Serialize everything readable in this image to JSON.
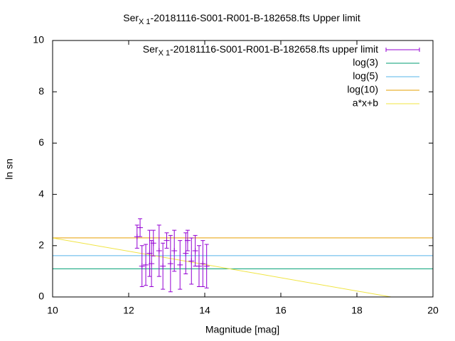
{
  "chart_data": {
    "type": "errorbar",
    "title": {
      "main": "Ser",
      "subscript": "X 1",
      "rest": "-20181116-S001-R001-B-182658.fts Upper limit"
    },
    "x_label": "Magnitude [mag]",
    "y_label": "ln sn",
    "xlim": [
      10,
      20
    ],
    "xticks": [
      10,
      12,
      14,
      16,
      18,
      20
    ],
    "ylim": [
      0,
      10
    ],
    "yticks": [
      0,
      2,
      4,
      6,
      8,
      10
    ],
    "grid": false,
    "legend": "top-right",
    "series": [
      {
        "name": {
          "main": "Ser",
          "subscript": "X 1",
          "rest": "-20181116-S001-R001-B-182658.fts upper limit"
        },
        "style": "errorbars",
        "color": "#9400d3",
        "x": [
          12.22,
          12.3,
          12.35,
          12.45,
          12.55,
          12.6,
          12.65,
          12.8,
          12.9,
          13.0,
          13.1,
          13.2,
          13.35,
          13.5,
          13.55,
          13.65,
          13.75,
          13.85,
          13.95,
          14.05
        ],
        "values": [
          2.35,
          2.7,
          1.2,
          1.25,
          1.7,
          1.3,
          2.1,
          1.8,
          1.2,
          2.2,
          1.3,
          1.8,
          1.25,
          1.7,
          2.2,
          1.4,
          1.8,
          1.2,
          1.3,
          1.2
        ],
        "errors": [
          0.45,
          0.35,
          0.8,
          0.8,
          0.9,
          0.9,
          0.5,
          1.0,
          0.9,
          0.3,
          1.1,
          0.8,
          0.95,
          0.8,
          0.4,
          0.9,
          0.6,
          0.8,
          0.9,
          0.85
        ]
      },
      {
        "name": "log(3)",
        "style": "line",
        "color": "#009e73",
        "x": [
          10,
          20
        ],
        "values": [
          1.099,
          1.099
        ]
      },
      {
        "name": "log(5)",
        "style": "line",
        "color": "#56b4e9",
        "x": [
          10,
          20
        ],
        "values": [
          1.609,
          1.609
        ]
      },
      {
        "name": "log(10)",
        "style": "line",
        "color": "#e69f00",
        "x": [
          10,
          20
        ],
        "values": [
          2.303,
          2.303
        ]
      },
      {
        "name": "a*x+b",
        "style": "line",
        "color": "#f0e442",
        "x": [
          10,
          18.9
        ],
        "values": [
          2.3,
          0
        ]
      }
    ]
  }
}
